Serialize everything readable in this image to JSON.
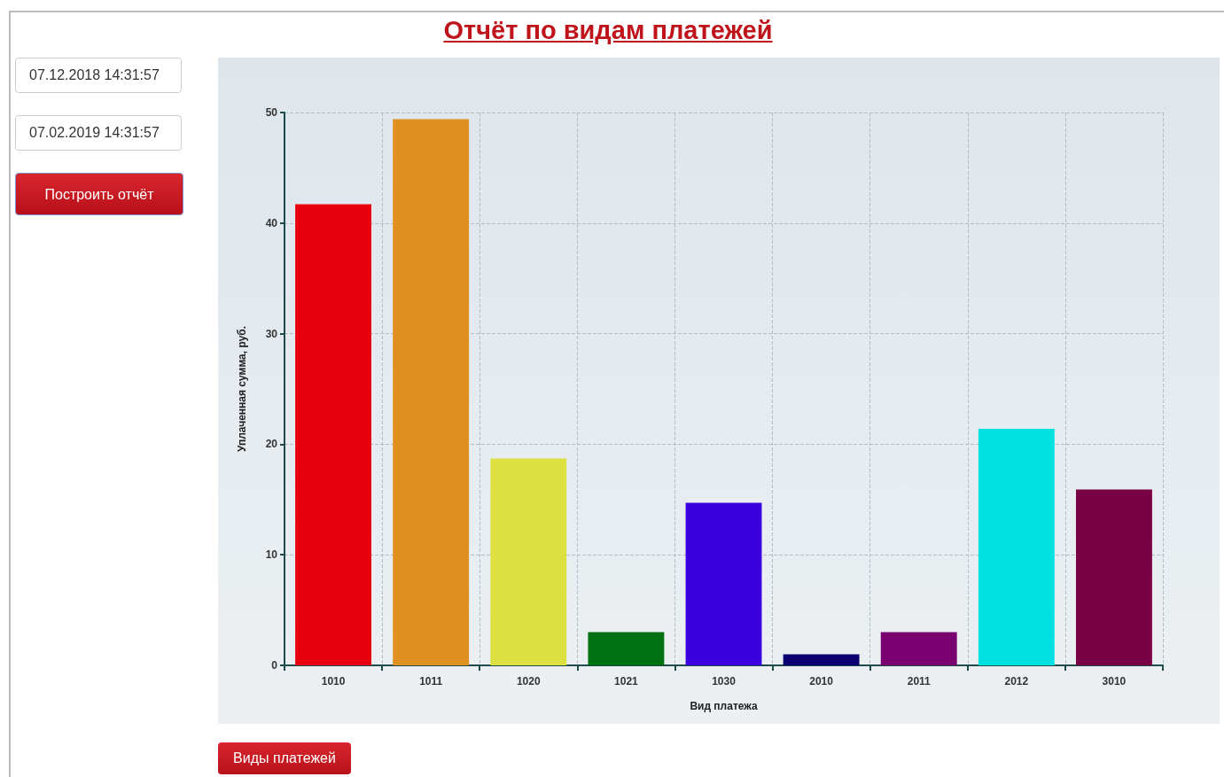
{
  "chart_data": {
    "type": "bar",
    "title": "Отчёт по видам платежей",
    "xlabel": "Вид платежа",
    "ylabel": "Уплаченная сумма, руб.",
    "categories": [
      "1010",
      "1011",
      "1020",
      "1021",
      "1030",
      "2010",
      "2011",
      "2012",
      "3010"
    ],
    "values": [
      41.7,
      49.4,
      18.7,
      3.0,
      14.7,
      1.0,
      3.0,
      21.4,
      15.9
    ],
    "colors": [
      "#e8000e",
      "#e0901f",
      "#dce040",
      "#007010",
      "#3a00e0",
      "#0a0070",
      "#7a0070",
      "#00e0e0",
      "#7a0045"
    ],
    "ylim": [
      0,
      50
    ],
    "yticks": [
      0,
      10,
      20,
      30,
      40,
      50
    ],
    "grid": true,
    "annotations": [
      "07.12.2018 14:31:57",
      "07.02.2019 14:31:57",
      "Построить отчёт",
      "Виды платежей"
    ]
  }
}
